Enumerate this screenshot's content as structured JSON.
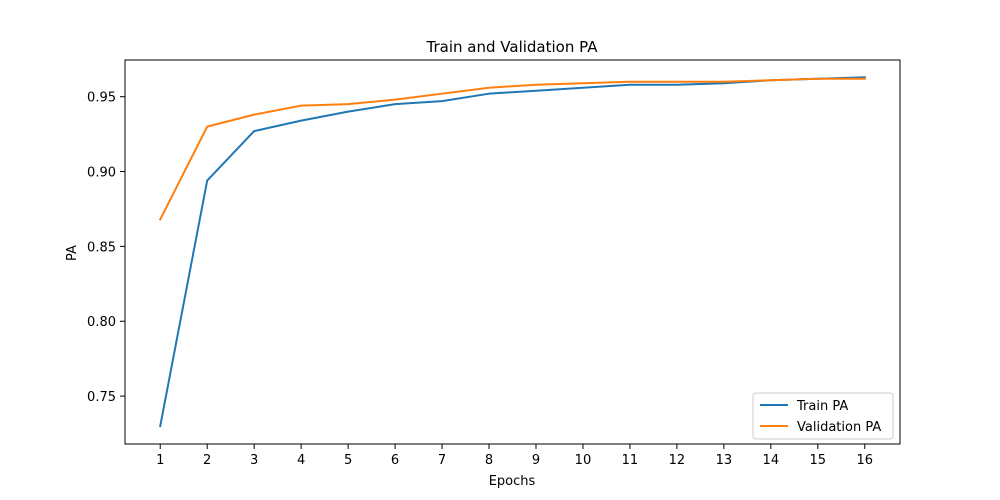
{
  "chart_data": {
    "type": "line",
    "title": "Train and Validation PA",
    "xlabel": "Epochs",
    "ylabel": "PA",
    "x": [
      1,
      2,
      3,
      4,
      5,
      6,
      7,
      8,
      9,
      10,
      11,
      12,
      13,
      14,
      15,
      16
    ],
    "xticks": [
      "1",
      "2",
      "3",
      "4",
      "5",
      "6",
      "7",
      "8",
      "9",
      "10",
      "11",
      "12",
      "13",
      "14",
      "15",
      "16"
    ],
    "yticks": [
      0.75,
      0.8,
      0.85,
      0.9,
      0.95
    ],
    "ytick_labels": [
      "0.75",
      "0.80",
      "0.85",
      "0.90",
      "0.95"
    ],
    "xlim": [
      0.25,
      16.75
    ],
    "ylim": [
      0.718,
      0.9745
    ],
    "grid": false,
    "legend_position": "lower-right",
    "series": [
      {
        "name": "Train PA",
        "color": "#1f77b4",
        "values": [
          0.73,
          0.894,
          0.927,
          0.934,
          0.94,
          0.945,
          0.947,
          0.952,
          0.954,
          0.956,
          0.958,
          0.958,
          0.959,
          0.961,
          0.962,
          0.963
        ]
      },
      {
        "name": "Validation PA",
        "color": "#ff7f0e",
        "values": [
          0.868,
          0.93,
          0.938,
          0.944,
          0.945,
          0.948,
          0.952,
          0.956,
          0.958,
          0.959,
          0.96,
          0.96,
          0.96,
          0.961,
          0.962,
          0.962
        ]
      }
    ]
  }
}
